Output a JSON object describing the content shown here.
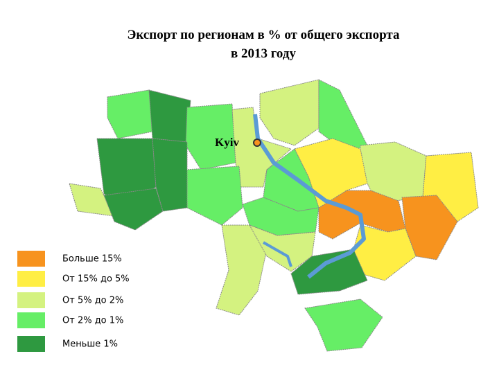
{
  "title": [
    "Экспорт по регионам в % от общего экспорта",
    "в 2013 году"
  ],
  "city": "Kyiv",
  "legend": [
    {
      "label": "Больше 15%",
      "color": "#f7931e"
    },
    {
      "label": "От 15% до 5%",
      "color": "#ffee44"
    },
    {
      "label": "От 5% до 2%",
      "color": "#d4f280"
    },
    {
      "label": "От 2% до 1%",
      "color": "#66ee66"
    },
    {
      "label": "Меньше 1%",
      "color": "#2e9940"
    }
  ]
}
